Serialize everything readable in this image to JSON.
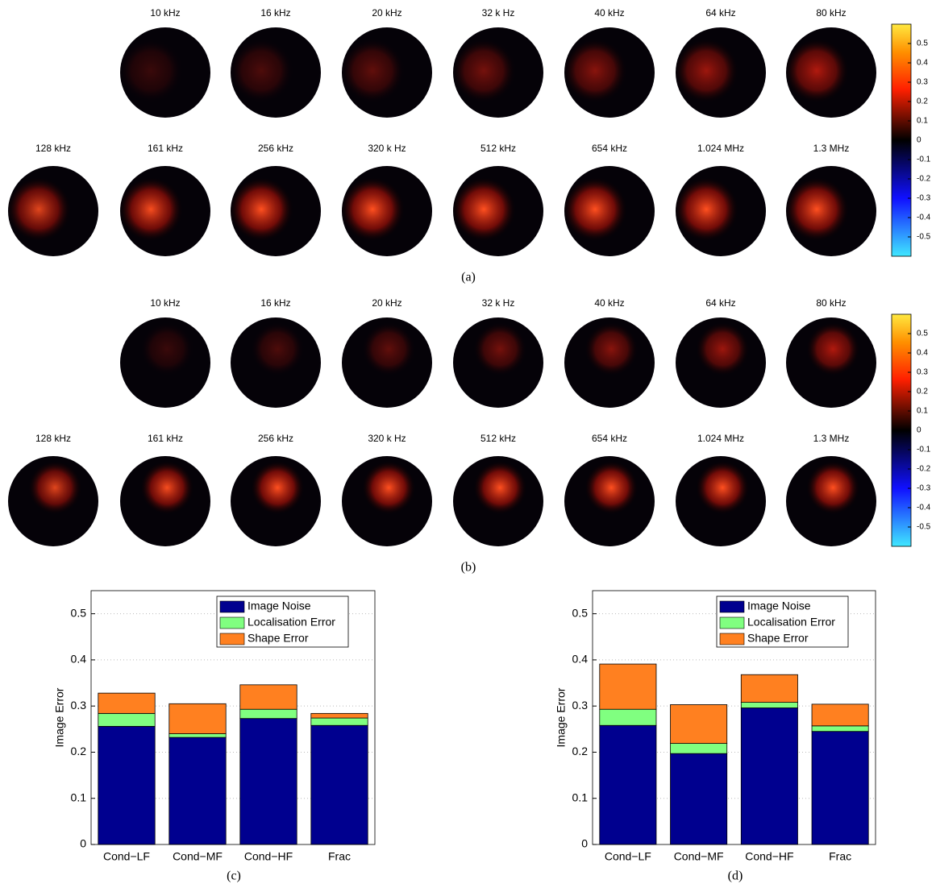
{
  "panels": [
    {
      "caption": "(a)",
      "rows": [
        [
          "10 kHz",
          "16 kHz",
          "20 kHz",
          "32 k Hz",
          "40 kHz",
          "64 kHz",
          "80 kHz"
        ],
        [
          "128 kHz",
          "161 kHz",
          "256 kHz",
          "320 k Hz",
          "512 kHz",
          "654 kHz",
          "1.024 MHz",
          "1.3 MHz"
        ]
      ]
    },
    {
      "caption": "(b)",
      "rows": [
        [
          "10 kHz",
          "16 kHz",
          "20 kHz",
          "32 k Hz",
          "40 kHz",
          "64 kHz",
          "80 kHz"
        ],
        [
          "128 kHz",
          "161 kHz",
          "256 kHz",
          "320 k Hz",
          "512 kHz",
          "654 kHz",
          "1.024 MHz",
          "1.3 MHz"
        ]
      ]
    }
  ],
  "colorbar": {
    "lim": [
      -0.6,
      0.6
    ],
    "ticks": [
      0.5,
      0.4,
      0.3,
      0.2,
      0.1,
      0,
      -0.1,
      -0.2,
      -0.3,
      -0.4,
      -0.5
    ]
  },
  "chart_data": [
    {
      "type": "bar",
      "stacked": true,
      "caption": "(c)",
      "ylabel": "Image Error",
      "categories": [
        "Cond−LF",
        "Cond−MF",
        "Cond−HF",
        "Frac"
      ],
      "series": [
        {
          "name": "Image Noise",
          "color": "#00008f",
          "values": [
            0.256,
            0.232,
            0.273,
            0.258
          ]
        },
        {
          "name": "Localisation Error",
          "color": "#80ff80",
          "values": [
            0.028,
            0.008,
            0.02,
            0.016
          ]
        },
        {
          "name": "Shape Error",
          "color": "#ff8020",
          "values": [
            0.044,
            0.065,
            0.053,
            0.01
          ]
        }
      ],
      "ylim": [
        0,
        0.55
      ],
      "yticks": [
        0,
        0.1,
        0.2,
        0.3,
        0.4,
        0.5
      ],
      "grid": true,
      "legend": "upper right"
    },
    {
      "type": "bar",
      "stacked": true,
      "caption": "(d)",
      "ylabel": "Image Error",
      "categories": [
        "Cond−LF",
        "Cond−MF",
        "Cond−HF",
        "Frac"
      ],
      "series": [
        {
          "name": "Image Noise",
          "color": "#00008f",
          "values": [
            0.258,
            0.197,
            0.296,
            0.245
          ]
        },
        {
          "name": "Localisation Error",
          "color": "#80ff80",
          "values": [
            0.035,
            0.022,
            0.012,
            0.012
          ]
        },
        {
          "name": "Shape Error",
          "color": "#ff8020",
          "values": [
            0.098,
            0.084,
            0.06,
            0.047
          ]
        }
      ],
      "ylim": [
        0,
        0.55
      ],
      "yticks": [
        0,
        0.1,
        0.2,
        0.3,
        0.4,
        0.5
      ],
      "grid": true,
      "legend": "upper right"
    }
  ]
}
